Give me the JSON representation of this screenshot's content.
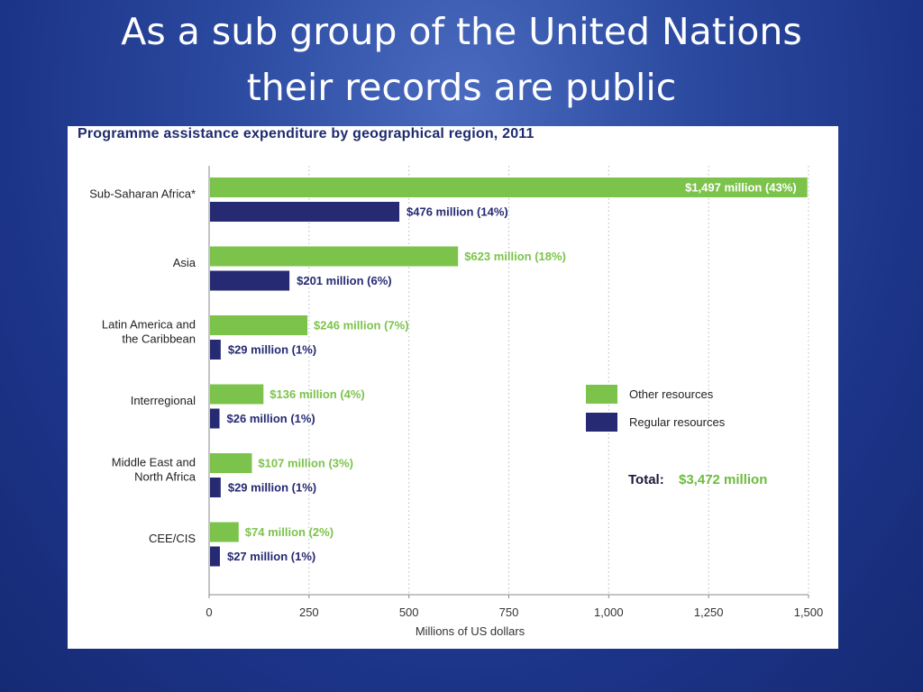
{
  "slide": {
    "title_line1": "As a sub group of the United Nations",
    "title_line2": "their records are public"
  },
  "colors": {
    "other": "#7cc34b",
    "regular": "#252a73",
    "total_value": "#6cbb3c",
    "grid": "#b9b9b9",
    "axis": "#8a8a8a"
  },
  "chart_data": {
    "type": "bar",
    "orientation": "horizontal",
    "title": "Programme assistance expenditure by geographical region, 2011",
    "xlabel": "Millions of US dollars",
    "xlim": [
      0,
      1500
    ],
    "xticks": [
      0,
      250,
      500,
      750,
      1000,
      1250,
      1500
    ],
    "xtick_labels": [
      "0",
      "250",
      "500",
      "750",
      "1,000",
      "1,250",
      "1,500"
    ],
    "grid": "vertical dotted",
    "legend_position": "right",
    "categories": [
      [
        "Sub-Saharan Africa*"
      ],
      [
        "Asia"
      ],
      [
        "Latin America and",
        "the  Caribbean"
      ],
      [
        "Interregional"
      ],
      [
        "Middle East and",
        "North Africa"
      ],
      [
        "CEE/CIS"
      ]
    ],
    "series": [
      {
        "name": "Other resources",
        "values": [
          1497,
          623,
          246,
          136,
          107,
          74
        ],
        "labels": [
          "$1,497 million (43%)",
          "$623 million (18%)",
          "$246 million (7%)",
          "$136 million (4%)",
          "$107 million (3%)",
          "$74 million (2%)"
        ]
      },
      {
        "name": "Regular resources",
        "values": [
          476,
          201,
          29,
          26,
          29,
          27
        ],
        "labels": [
          "$476 million (14%)",
          "$201 million (6%)",
          "$29 million (1%)",
          "$26 million (1%)",
          "$29 million (1%)",
          "$27 million (1%)"
        ]
      }
    ],
    "total_label": "Total:",
    "total_value": "$3,472 million"
  }
}
